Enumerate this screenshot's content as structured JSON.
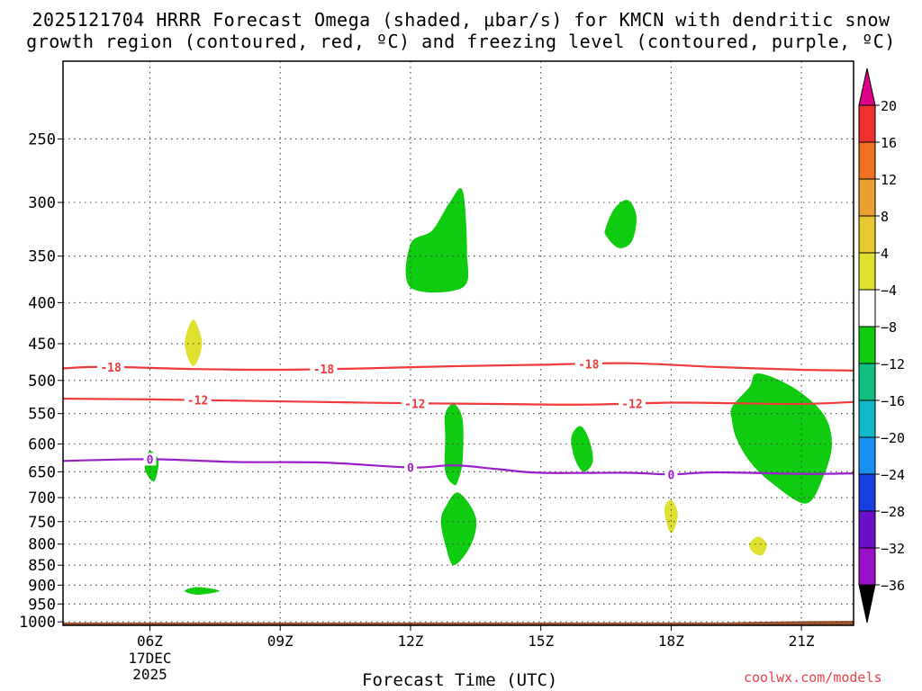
{
  "header": {
    "title_line1": "2025121704 HRRR Forecast Omega (shaded, μbar/s) for KMCN with dendritic snow",
    "title_line2": "growth region (contoured, red, ºC) and freezing level (contoured, purple, ºC)"
  },
  "footer": {
    "xaxis_title": "Forecast Time (UTC)",
    "credit": "coolwx.com/models"
  },
  "colors": {
    "snow_growth_contour": "#ee3a3a",
    "freezing_level_contour": "#9b1fc9",
    "terrain": "#a0522d",
    "grid": "#444444"
  },
  "chart_data": {
    "type": "heatmap",
    "xlabel": "Forecast Time (UTC)",
    "ylabel": "",
    "x_units": "hours UTC on 17 Dec 2025",
    "xlim": [
      4,
      22.2
    ],
    "ylim_hpa": [
      1010,
      200
    ],
    "y_scale": "log (pressure)",
    "grid": "dotted",
    "x_ticks": [
      {
        "x": 6,
        "label": "06Z"
      },
      {
        "x": 9,
        "label": "09Z"
      },
      {
        "x": 12,
        "label": "12Z"
      },
      {
        "x": 15,
        "label": "15Z"
      },
      {
        "x": 18,
        "label": "18Z"
      },
      {
        "x": 21,
        "label": "21Z"
      }
    ],
    "x_sublabel": [
      "17DEC",
      "2025"
    ],
    "y_ticks": [
      250,
      300,
      350,
      400,
      450,
      500,
      550,
      600,
      650,
      700,
      750,
      800,
      850,
      900,
      950,
      1000
    ],
    "colorbar": {
      "position": "right",
      "levels": [
        20,
        16,
        12,
        8,
        4,
        -4,
        -8,
        -12,
        -16,
        -20,
        -24,
        -28,
        -32,
        -36
      ],
      "level_labels": [
        "20",
        "16",
        "12",
        "8",
        "4",
        "−4",
        "−8",
        "−12",
        "−16",
        "−20",
        "−24",
        "−28",
        "−32",
        "−36"
      ],
      "colors": [
        "#ee3030",
        "#ee7020",
        "#e8a030",
        "#e8c830",
        "#e0e030",
        "#ffffff",
        "#10cc10",
        "#10c080",
        "#10b8c8",
        "#1890f0",
        "#1840e0",
        "#6a10c8",
        "#9a10c8",
        "#a0a0a0"
      ],
      "above_color": "#dd0088",
      "below_color": "#000000"
    },
    "contours": [
      {
        "name": "-18",
        "color": "#ee3a3a",
        "points": [
          [
            4,
            483
          ],
          [
            5,
            481
          ],
          [
            7,
            484
          ],
          [
            9,
            485
          ],
          [
            11,
            483
          ],
          [
            13,
            480
          ],
          [
            15,
            478
          ],
          [
            17,
            476
          ],
          [
            19,
            481
          ],
          [
            21,
            485
          ],
          [
            22.2,
            486
          ]
        ],
        "label_x": [
          5.1,
          10.0,
          16.1
        ]
      },
      {
        "name": "-12",
        "color": "#ee3a3a",
        "points": [
          [
            4,
            527
          ],
          [
            6,
            528
          ],
          [
            8,
            530
          ],
          [
            10,
            532
          ],
          [
            12,
            534
          ],
          [
            14,
            535
          ],
          [
            16,
            536
          ],
          [
            18,
            533
          ],
          [
            19.5,
            534
          ],
          [
            21,
            535
          ],
          [
            22.2,
            532
          ]
        ],
        "label_x": [
          7.1,
          12.1,
          17.1
        ]
      },
      {
        "name": "0",
        "color": "#9b1fc9",
        "points": [
          [
            4,
            630
          ],
          [
            6,
            627
          ],
          [
            8,
            632
          ],
          [
            10,
            633
          ],
          [
            12,
            642
          ],
          [
            13,
            638
          ],
          [
            14,
            645
          ],
          [
            15,
            652
          ],
          [
            17,
            652
          ],
          [
            18,
            655
          ],
          [
            19,
            651
          ],
          [
            21,
            654
          ],
          [
            22.2,
            653
          ]
        ],
        "label_x": [
          6.0,
          12.0,
          18.0
        ]
      }
    ],
    "shaded_regions": [
      {
        "level": "-4 to -8",
        "color": "#10cc10",
        "poly": [
          [
            12.0,
            383
          ],
          [
            13.2,
            383
          ],
          [
            13.3,
            345
          ],
          [
            13.2,
            290
          ],
          [
            12.9,
            300
          ],
          [
            12.5,
            325
          ],
          [
            12.0,
            338
          ]
        ]
      },
      {
        "level": "-4 to -8",
        "color": "#10cc10",
        "poly": [
          [
            16.5,
            330
          ],
          [
            16.8,
            342
          ],
          [
            17.1,
            335
          ],
          [
            17.2,
            312
          ],
          [
            17.0,
            298
          ],
          [
            16.7,
            305
          ],
          [
            16.5,
            322
          ]
        ]
      },
      {
        "level": "-4 to -8",
        "color": "#10cc10",
        "poly": [
          [
            12.8,
            550
          ],
          [
            13.0,
            535
          ],
          [
            13.2,
            560
          ],
          [
            13.2,
            630
          ],
          [
            13.1,
            665
          ],
          [
            13.0,
            675
          ],
          [
            12.8,
            650
          ],
          [
            12.8,
            590
          ]
        ]
      },
      {
        "level": "-4 to -8",
        "color": "#10cc10",
        "poly": [
          [
            12.8,
            720
          ],
          [
            13.1,
            690
          ],
          [
            13.5,
            740
          ],
          [
            13.4,
            800
          ],
          [
            13.0,
            850
          ],
          [
            12.8,
            800
          ],
          [
            12.7,
            750
          ]
        ]
      },
      {
        "level": "-4 to -8",
        "color": "#10cc10",
        "poly": [
          [
            15.7,
            590
          ],
          [
            15.9,
            570
          ],
          [
            16.1,
            590
          ],
          [
            16.2,
            630
          ],
          [
            16.0,
            650
          ],
          [
            15.8,
            630
          ]
        ]
      },
      {
        "level": "-4 to -8",
        "color": "#10cc10",
        "poly": [
          [
            19.4,
            540
          ],
          [
            19.8,
            510
          ],
          [
            20.0,
            490
          ],
          [
            20.8,
            510
          ],
          [
            21.5,
            550
          ],
          [
            21.7,
            600
          ],
          [
            21.5,
            660
          ],
          [
            21.1,
            712
          ],
          [
            20.3,
            670
          ],
          [
            19.8,
            630
          ],
          [
            19.5,
            590
          ],
          [
            19.4,
            560
          ]
        ]
      },
      {
        "level": "-4 to -8",
        "color": "#10cc10",
        "poly": [
          [
            5.9,
            630
          ],
          [
            6.0,
            612
          ],
          [
            6.2,
            630
          ],
          [
            6.1,
            668
          ],
          [
            5.9,
            650
          ]
        ]
      },
      {
        "level": "4 to 8",
        "color": "#e0e030",
        "poly": [
          [
            6.8,
            450
          ],
          [
            7.0,
            420
          ],
          [
            7.2,
            450
          ],
          [
            7.0,
            480
          ]
        ]
      },
      {
        "level": "-4 to -8",
        "color": "#10cc10",
        "poly": [
          [
            6.8,
            915
          ],
          [
            7.1,
            905
          ],
          [
            7.6,
            915
          ],
          [
            7.1,
            925
          ]
        ]
      },
      {
        "level": "4 to 8",
        "color": "#e0e030",
        "poly": [
          [
            17.85,
            720
          ],
          [
            18.0,
            705
          ],
          [
            18.15,
            730
          ],
          [
            18.1,
            760
          ],
          [
            18.0,
            775
          ],
          [
            17.9,
            755
          ]
        ]
      },
      {
        "level": "4 to 8",
        "color": "#e0e030",
        "poly": [
          [
            19.8,
            800
          ],
          [
            20.0,
            783
          ],
          [
            20.2,
            800
          ],
          [
            20.1,
            825
          ],
          [
            19.9,
            820
          ]
        ]
      }
    ],
    "terrain": {
      "color": "#a0522d",
      "poly": [
        [
          4,
          1010
        ],
        [
          4,
          1002
        ],
        [
          19.3,
          1002
        ],
        [
          20.0,
          1000
        ],
        [
          21.0,
          998
        ],
        [
          22.2,
          997
        ],
        [
          22.2,
          1010
        ]
      ]
    }
  }
}
